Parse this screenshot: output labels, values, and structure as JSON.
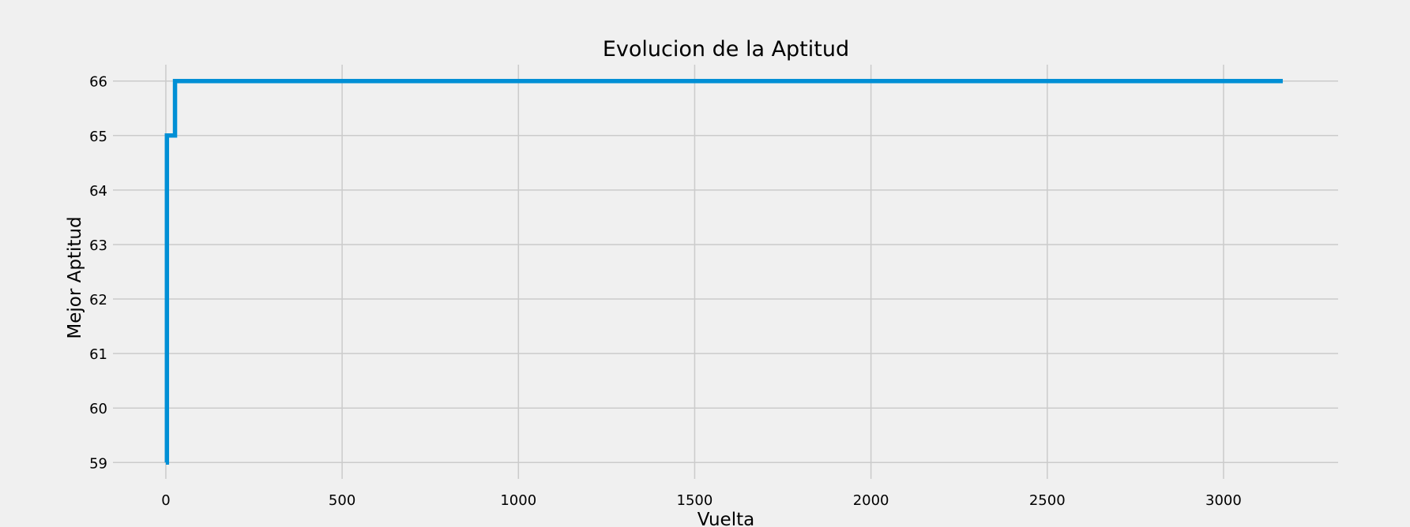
{
  "chart_data": {
    "type": "line",
    "title": "Evolucion de la Aptitud",
    "xlabel": "Vuelta",
    "ylabel": "Mejor Aptitud",
    "xlim": [
      -150,
      3325
    ],
    "ylim": [
      58.7,
      66.3
    ],
    "xticks": [
      0,
      500,
      1000,
      1500,
      2000,
      2500,
      3000
    ],
    "yticks": [
      59,
      60,
      61,
      62,
      63,
      64,
      65,
      66
    ],
    "grid": true,
    "colors": {
      "background": "#f0f0f0",
      "grid": "#cbcbcb",
      "line": "#008fd5"
    },
    "series": [
      {
        "x": [
          0,
          3,
          3,
          26,
          26,
          3168
        ],
        "y": [
          59,
          59,
          65,
          65,
          66,
          66
        ]
      }
    ]
  }
}
